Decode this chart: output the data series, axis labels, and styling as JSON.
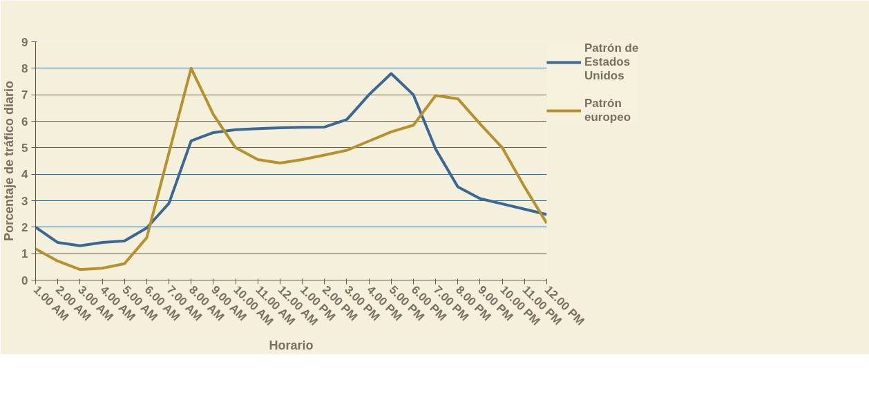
{
  "chart_data": {
    "type": "line",
    "xlabel": "Horario",
    "ylabel": "Porcentaje de tráfico diario",
    "categories": [
      "1.00 AM",
      "2.00 AM",
      "3.00 AM",
      "4.00 AM",
      "5.00 AM",
      "6.00 AM",
      "7.00 AM",
      "8.00 AM",
      "9.00 AM",
      "10.00 AM",
      "11.00 AM",
      "12.00 AM",
      "1.00 PM",
      "2.00 PM",
      "3.00 PM",
      "4.00 PM",
      "5.00 PM",
      "6.00 PM",
      "7.00 PM",
      "8.00 PM",
      "9.00 PM",
      "10.00 PM",
      "11.00 PM",
      "12.00 PM"
    ],
    "series": [
      {
        "name": "Patrón de Estados Unidos",
        "color": "#3a6896",
        "values": [
          2.0,
          1.42,
          1.3,
          1.42,
          1.48,
          1.97,
          2.9,
          5.26,
          5.57,
          5.68,
          5.72,
          5.75,
          5.77,
          5.78,
          6.06,
          7.0,
          7.8,
          7.0,
          4.95,
          3.52,
          3.08,
          2.88,
          2.68,
          2.48
        ]
      },
      {
        "name": "Patrón europeo",
        "color": "#b8902c",
        "values": [
          1.18,
          0.72,
          0.4,
          0.45,
          0.62,
          1.6,
          4.8,
          8.0,
          6.25,
          5.0,
          4.55,
          4.42,
          4.55,
          4.72,
          4.9,
          5.25,
          5.6,
          5.85,
          6.97,
          6.85,
          5.9,
          5.0,
          3.52,
          2.15
        ]
      }
    ],
    "ylim": [
      0,
      9
    ],
    "yticks": [
      0,
      1,
      2,
      3,
      4,
      5,
      6,
      7,
      8,
      9
    ],
    "grid": "y",
    "legend": "right"
  }
}
